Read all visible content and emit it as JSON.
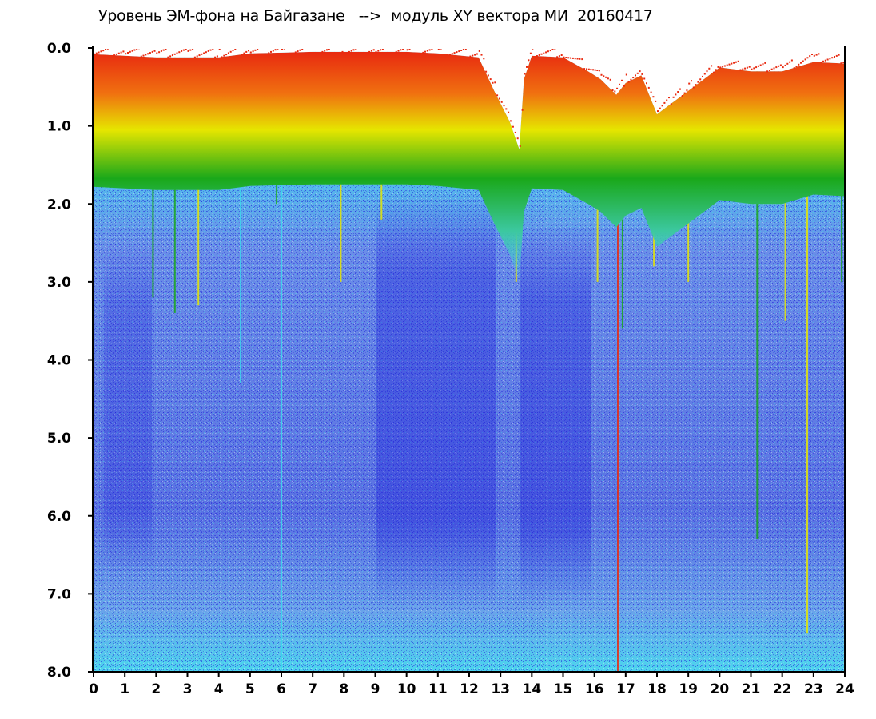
{
  "chart_data": {
    "type": "heatmap",
    "title": "Уровень ЭМ-фона на Байгазане   -->  модуль XY вектора МИ  20160417",
    "xlabel": "",
    "ylabel": "",
    "xlim": [
      0,
      24
    ],
    "ylim": [
      0,
      8
    ],
    "y_inverted": true,
    "grid": false,
    "x_ticks": [
      0,
      1,
      2,
      3,
      4,
      5,
      6,
      7,
      8,
      9,
      10,
      11,
      12,
      13,
      14,
      15,
      16,
      17,
      18,
      19,
      20,
      21,
      22,
      23,
      24
    ],
    "x_tick_labels": [
      "0",
      "1",
      "2",
      "3",
      "4",
      "5",
      "6",
      "7",
      "8",
      "9",
      "10",
      "11",
      "12",
      "13",
      "14",
      "15",
      "16",
      "17",
      "18",
      "19",
      "20",
      "21",
      "22",
      "23",
      "24"
    ],
    "y_ticks": [
      0,
      1,
      2,
      3,
      4,
      5,
      6,
      7,
      8
    ],
    "y_tick_labels": [
      "0.0",
      "1.0",
      "2.0",
      "3.0",
      "4.0",
      "5.0",
      "6.0",
      "7.0",
      "8.0"
    ],
    "colors": {
      "deep": "#1a1ad8",
      "blue": "#5a78e6",
      "light_blue": "#7fa8ee",
      "cyan": "#3cdcec",
      "green": "#1aa81a",
      "yellow": "#e6e600",
      "red": "#e82a10"
    },
    "noise_floor_profile": [
      {
        "hour": 0.0,
        "top": 0.08
      },
      {
        "hour": 1.0,
        "top": 0.1
      },
      {
        "hour": 2.0,
        "top": 0.12
      },
      {
        "hour": 3.0,
        "top": 0.12
      },
      {
        "hour": 4.0,
        "top": 0.12
      },
      {
        "hour": 5.0,
        "top": 0.07
      },
      {
        "hour": 6.0,
        "top": 0.06
      },
      {
        "hour": 7.0,
        "top": 0.05
      },
      {
        "hour": 8.0,
        "top": 0.05
      },
      {
        "hour": 9.0,
        "top": 0.05
      },
      {
        "hour": 10.0,
        "top": 0.05
      },
      {
        "hour": 11.0,
        "top": 0.07
      },
      {
        "hour": 12.3,
        "top": 0.12
      },
      {
        "hour": 12.8,
        "top": 0.55
      },
      {
        "hour": 13.3,
        "top": 0.95
      },
      {
        "hour": 13.6,
        "top": 1.3
      },
      {
        "hour": 13.75,
        "top": 0.4
      },
      {
        "hour": 14.0,
        "top": 0.1
      },
      {
        "hour": 15.0,
        "top": 0.12
      },
      {
        "hour": 15.8,
        "top": 0.3
      },
      {
        "hour": 16.2,
        "top": 0.4
      },
      {
        "hour": 16.7,
        "top": 0.6
      },
      {
        "hour": 17.0,
        "top": 0.45
      },
      {
        "hour": 17.5,
        "top": 0.35
      },
      {
        "hour": 18.0,
        "top": 0.85
      },
      {
        "hour": 18.5,
        "top": 0.7
      },
      {
        "hour": 19.0,
        "top": 0.55
      },
      {
        "hour": 20.0,
        "top": 0.25
      },
      {
        "hour": 21.0,
        "top": 0.3
      },
      {
        "hour": 22.0,
        "top": 0.3
      },
      {
        "hour": 23.0,
        "top": 0.18
      },
      {
        "hour": 24.0,
        "top": 0.2
      }
    ],
    "streaks": [
      {
        "hour": 1.9,
        "depth": 3.2,
        "color": "#1aa81a"
      },
      {
        "hour": 2.1,
        "depth": 1.8,
        "color": "#e6e600"
      },
      {
        "hour": 2.6,
        "depth": 3.4,
        "color": "#1aa81a"
      },
      {
        "hour": 3.35,
        "depth": 3.3,
        "color": "#e6e600"
      },
      {
        "hour": 4.7,
        "depth": 4.3,
        "color": "#3cdcec"
      },
      {
        "hour": 5.85,
        "depth": 2.0,
        "color": "#1aa81a"
      },
      {
        "hour": 6.0,
        "depth": 8.0,
        "color": "#3cdcec"
      },
      {
        "hour": 7.9,
        "depth": 3.0,
        "color": "#e6e600"
      },
      {
        "hour": 9.2,
        "depth": 2.2,
        "color": "#e6e600"
      },
      {
        "hour": 13.5,
        "depth": 3.0,
        "color": "#e6e600"
      },
      {
        "hour": 16.1,
        "depth": 3.0,
        "color": "#e6e600"
      },
      {
        "hour": 16.75,
        "depth": 8.0,
        "color": "#e82a10"
      },
      {
        "hour": 16.9,
        "depth": 3.6,
        "color": "#1aa81a"
      },
      {
        "hour": 17.9,
        "depth": 2.8,
        "color": "#e6e600"
      },
      {
        "hour": 19.0,
        "depth": 3.0,
        "color": "#e6e600"
      },
      {
        "hour": 21.2,
        "depth": 6.3,
        "color": "#1aa81a"
      },
      {
        "hour": 22.1,
        "depth": 3.5,
        "color": "#e6e600"
      },
      {
        "hour": 22.8,
        "depth": 7.5,
        "color": "#e6e600"
      },
      {
        "hour": 23.9,
        "depth": 3.0,
        "color": "#1aa81a"
      }
    ]
  }
}
